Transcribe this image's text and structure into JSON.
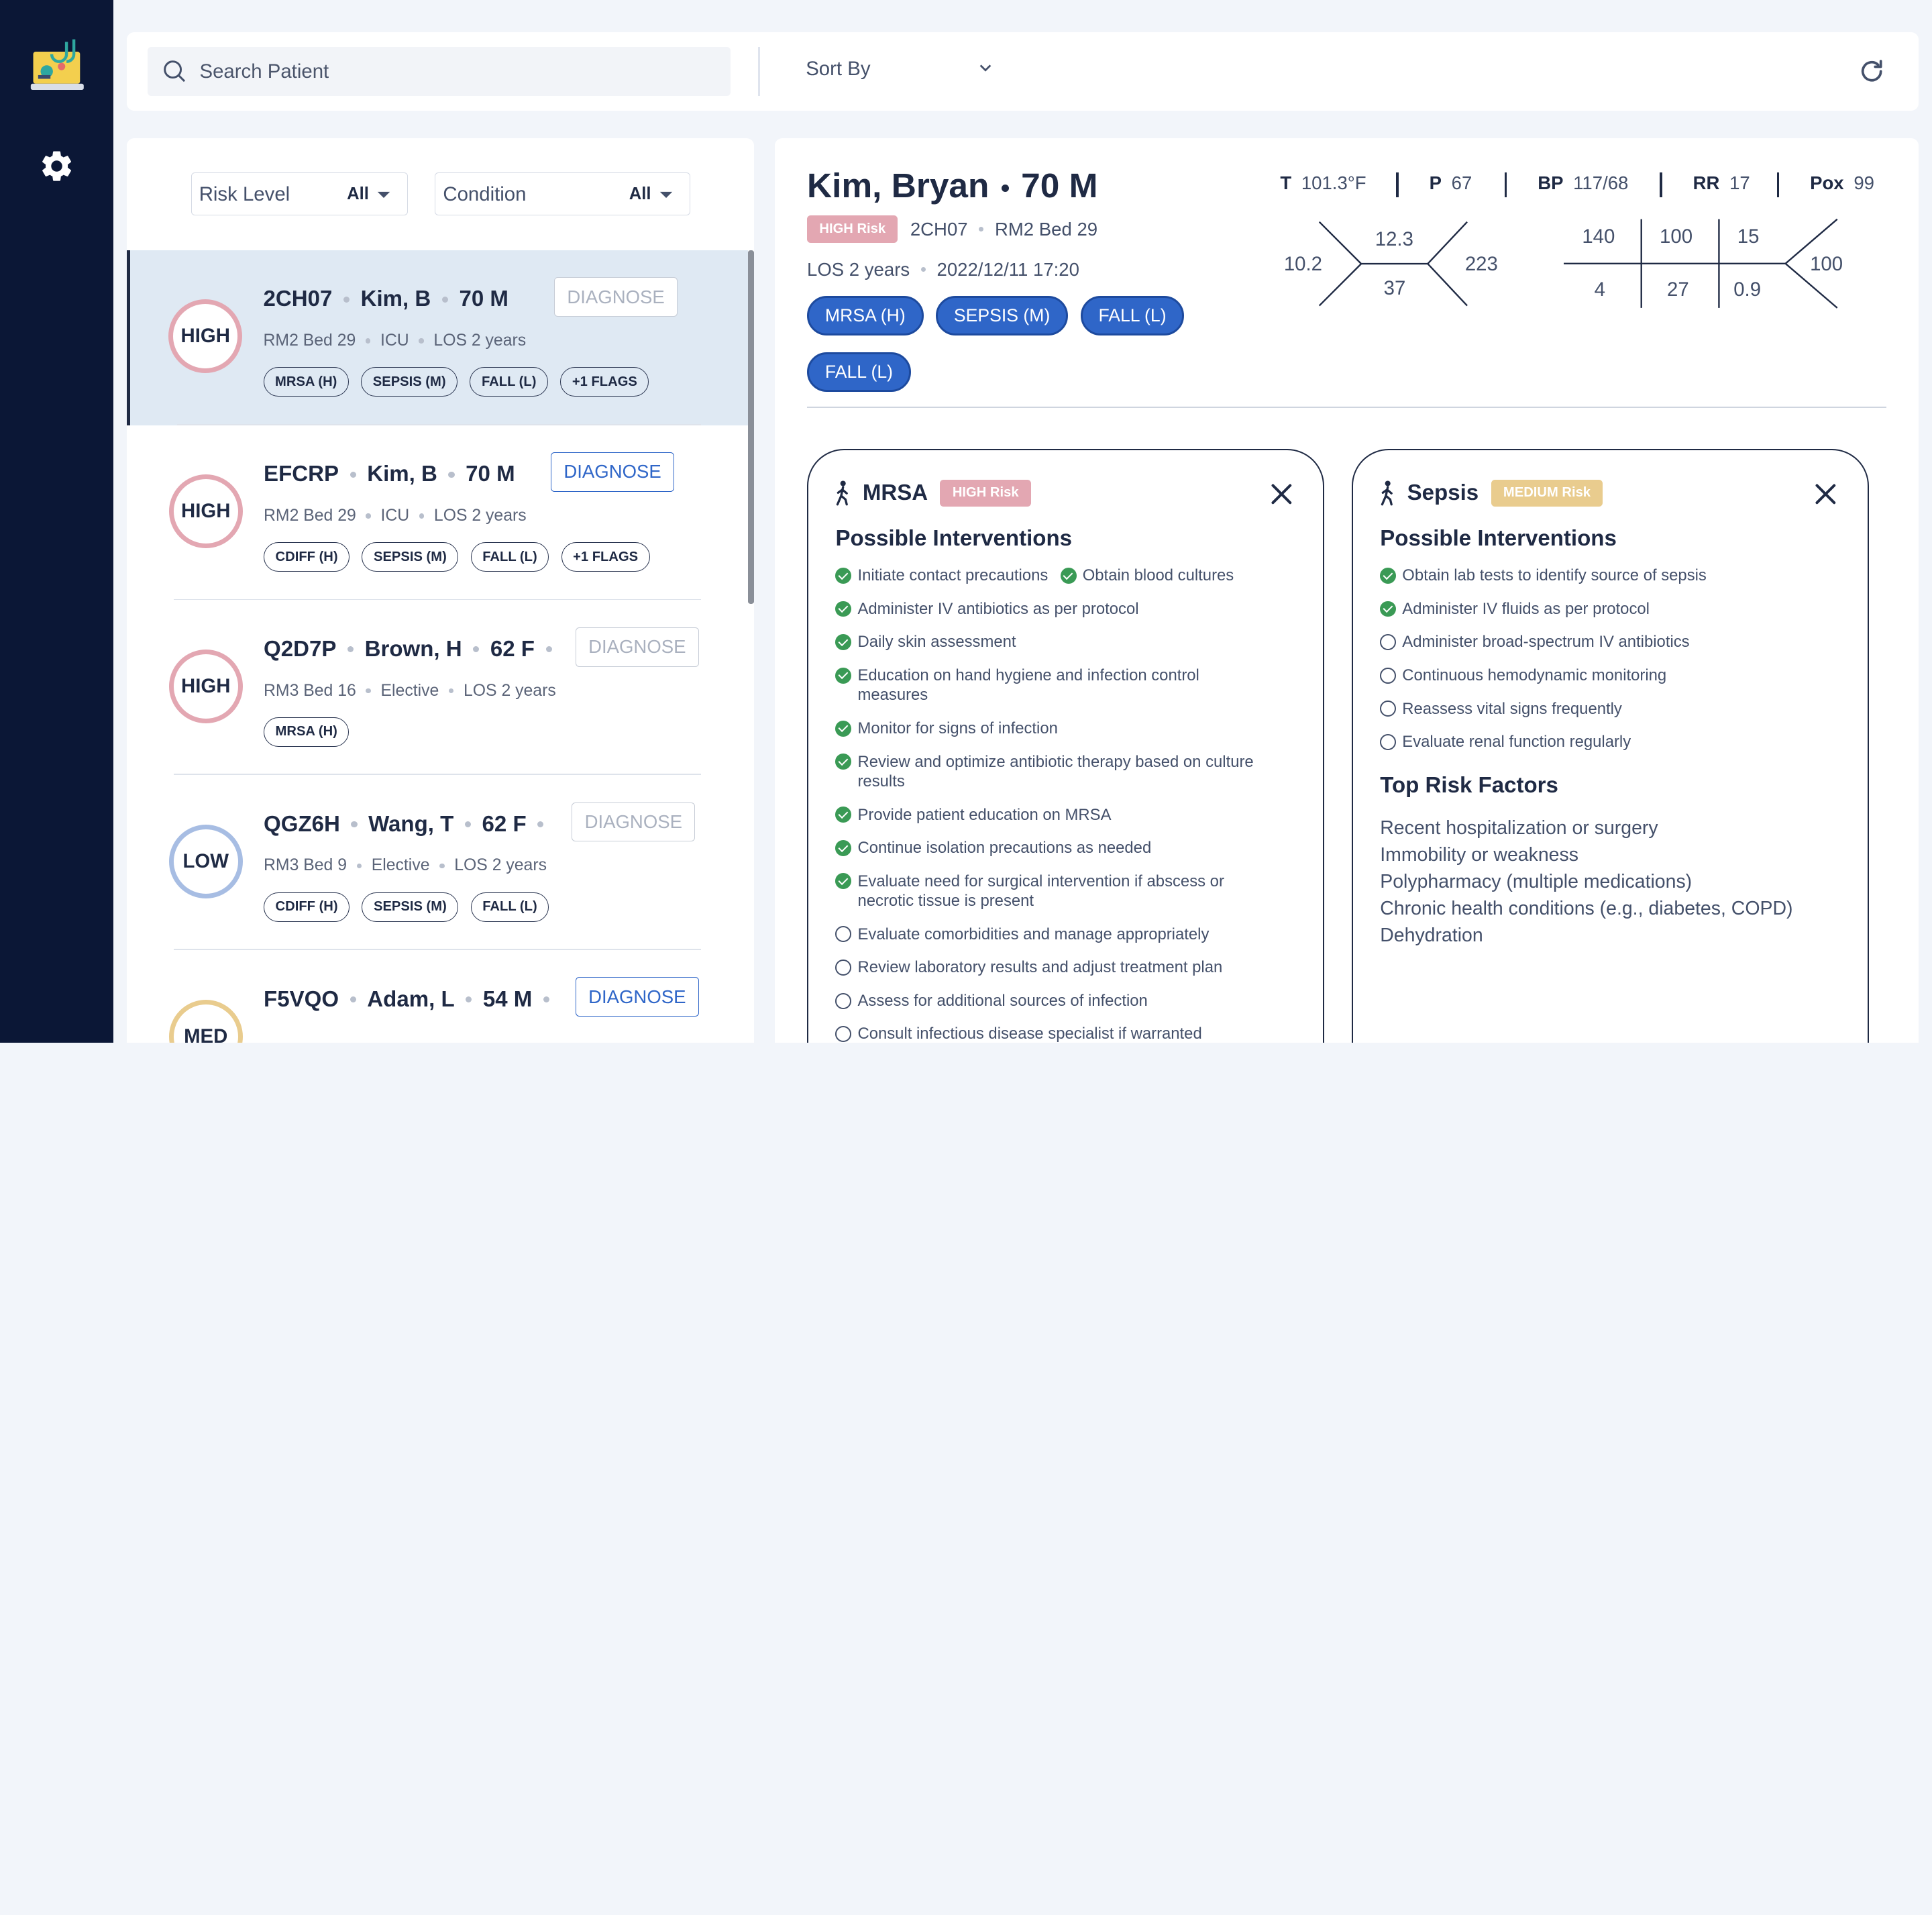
{
  "search": {
    "placeholder": "Search Patient"
  },
  "sort": {
    "label": "Sort By"
  },
  "filters": [
    {
      "label": "Risk Level",
      "value": "All"
    },
    {
      "label": "Condition",
      "value": "All"
    }
  ],
  "patients": [
    {
      "risk": "HIGH",
      "id": "2CH07",
      "name": "Kim, B",
      "agesex": "70 M",
      "room": "RM2 Bed 29",
      "unit": "ICU",
      "los": "LOS 2 years",
      "diagnose": "DIAGNOSE",
      "flags": [
        "MRSA (H)",
        "SEPSIS (M)",
        "FALL (L)",
        "+1 FLAGS"
      ]
    },
    {
      "risk": "HIGH",
      "id": "EFCRP",
      "name": "Kim, B",
      "agesex": "70 M",
      "room": "RM2 Bed 29",
      "unit": "ICU",
      "los": "LOS 2 years",
      "diagnose": "DIAGNOSE",
      "flags": [
        "CDIFF (H)",
        "SEPSIS (M)",
        "FALL (L)",
        "+1 FLAGS"
      ]
    },
    {
      "risk": "HIGH",
      "id": "Q2D7P",
      "name": "Brown, H",
      "agesex": "62 F",
      "room": "RM3 Bed 16",
      "unit": "Elective",
      "los": "LOS 2 years",
      "diagnose": "DIAGNOSE",
      "flags": [
        "MRSA (H)"
      ]
    },
    {
      "risk": "LOW",
      "id": "QGZ6H",
      "name": "Wang, T",
      "agesex": "62 F",
      "room": "RM3 Bed 9",
      "unit": "Elective",
      "los": "LOS 2 years",
      "diagnose": "DIAGNOSE",
      "flags": [
        "CDIFF (H)",
        "SEPSIS (M)",
        "FALL (L)"
      ]
    },
    {
      "risk": "MED",
      "id": "F5VQO",
      "name": "Adam, L",
      "agesex": "54 M",
      "room": "",
      "unit": "",
      "los": "",
      "diagnose": "DIAGNOSE",
      "flags": []
    }
  ],
  "detail": {
    "name": "Kim, Bryan",
    "agesex": "70 M",
    "risk_badge": "HIGH Risk",
    "id": "2CH07",
    "room": "RM2 Bed 29",
    "los": "LOS 2 years",
    "datetime": "2022/12/11 17:20",
    "conditions": [
      "MRSA (H)",
      "SEPSIS (M)",
      "FALL (L)",
      "FALL (L)"
    ],
    "vitals": [
      {
        "label": "T",
        "value": "101.3°F"
      },
      {
        "label": "P",
        "value": "67"
      },
      {
        "label": "BP",
        "value": "117/68"
      },
      {
        "label": "RR",
        "value": "17"
      },
      {
        "label": "Pox",
        "value": "99"
      }
    ],
    "cbc": {
      "left": "10.2",
      "top": "12.3",
      "bottom": "37",
      "right": "223"
    },
    "bmp": {
      "r1": [
        "140",
        "100",
        "15"
      ],
      "r2": [
        "4",
        "27",
        "0.9"
      ],
      "right": "100"
    }
  },
  "cards": [
    {
      "title": "MRSA",
      "badge": "HIGH Risk",
      "interventions_title": "Possible Interventions",
      "interventions": [
        {
          "text": "Initiate contact precautions",
          "done": true
        },
        {
          "text": "Obtain blood cultures",
          "done": true
        },
        {
          "text": "Administer IV antibiotics as per protocol",
          "done": true
        },
        {
          "text": "Daily skin assessment",
          "done": true
        },
        {
          "text": "Education on hand hygiene and infection control measures",
          "done": true
        },
        {
          "text": "Monitor for signs of infection",
          "done": true
        },
        {
          "text": "Review and optimize antibiotic therapy based on culture results",
          "done": true
        },
        {
          "text": "Provide patient education on MRSA",
          "done": true
        },
        {
          "text": "Continue isolation precautions as needed",
          "done": true
        },
        {
          "text": "Evaluate need for surgical intervention if abscess or necrotic tissue is present",
          "done": true
        },
        {
          "text": "Evaluate comorbidities and manage appropriately",
          "done": false
        },
        {
          "text": "Review laboratory results and adjust treatment plan",
          "done": false
        },
        {
          "text": "Assess for additional sources of infection",
          "done": false
        },
        {
          "text": "Consult infectious disease specialist if warranted",
          "done": false
        }
      ]
    },
    {
      "title": "Sepsis",
      "badge": "MEDIUM Risk",
      "interventions_title": "Possible Interventions",
      "interventions": [
        {
          "text": "Obtain lab tests to identify source of sepsis",
          "done": true
        },
        {
          "text": "Administer IV fluids as per protocol",
          "done": true
        },
        {
          "text": "Administer broad-spectrum IV antibiotics",
          "done": false
        },
        {
          "text": "Continuous hemodynamic monitoring",
          "done": false
        },
        {
          "text": "Reassess vital signs frequently",
          "done": false
        },
        {
          "text": "Evaluate renal function regularly",
          "done": false
        }
      ],
      "risk_factors_title": "Top Risk Factors",
      "risk_factors": [
        "Recent hospitalization or surgery",
        "Immobility or weakness",
        "Polypharmacy (multiple medications)",
        "Chronic health conditions (e.g., diabetes, COPD)",
        "Dehydration"
      ]
    }
  ],
  "colors": {
    "rail": "#0b1736",
    "accent": "#2f66c8",
    "high": "#e3a7b2",
    "medium": "#e9cc8e",
    "low": "#a7bde3",
    "check": "#3a9a55"
  },
  "icons": [
    "app-logo-icon",
    "gear-icon",
    "search-icon",
    "chevron-down-icon",
    "refresh-icon",
    "walking-person-icon",
    "close-icon",
    "check-circle-icon",
    "empty-circle-icon"
  ]
}
